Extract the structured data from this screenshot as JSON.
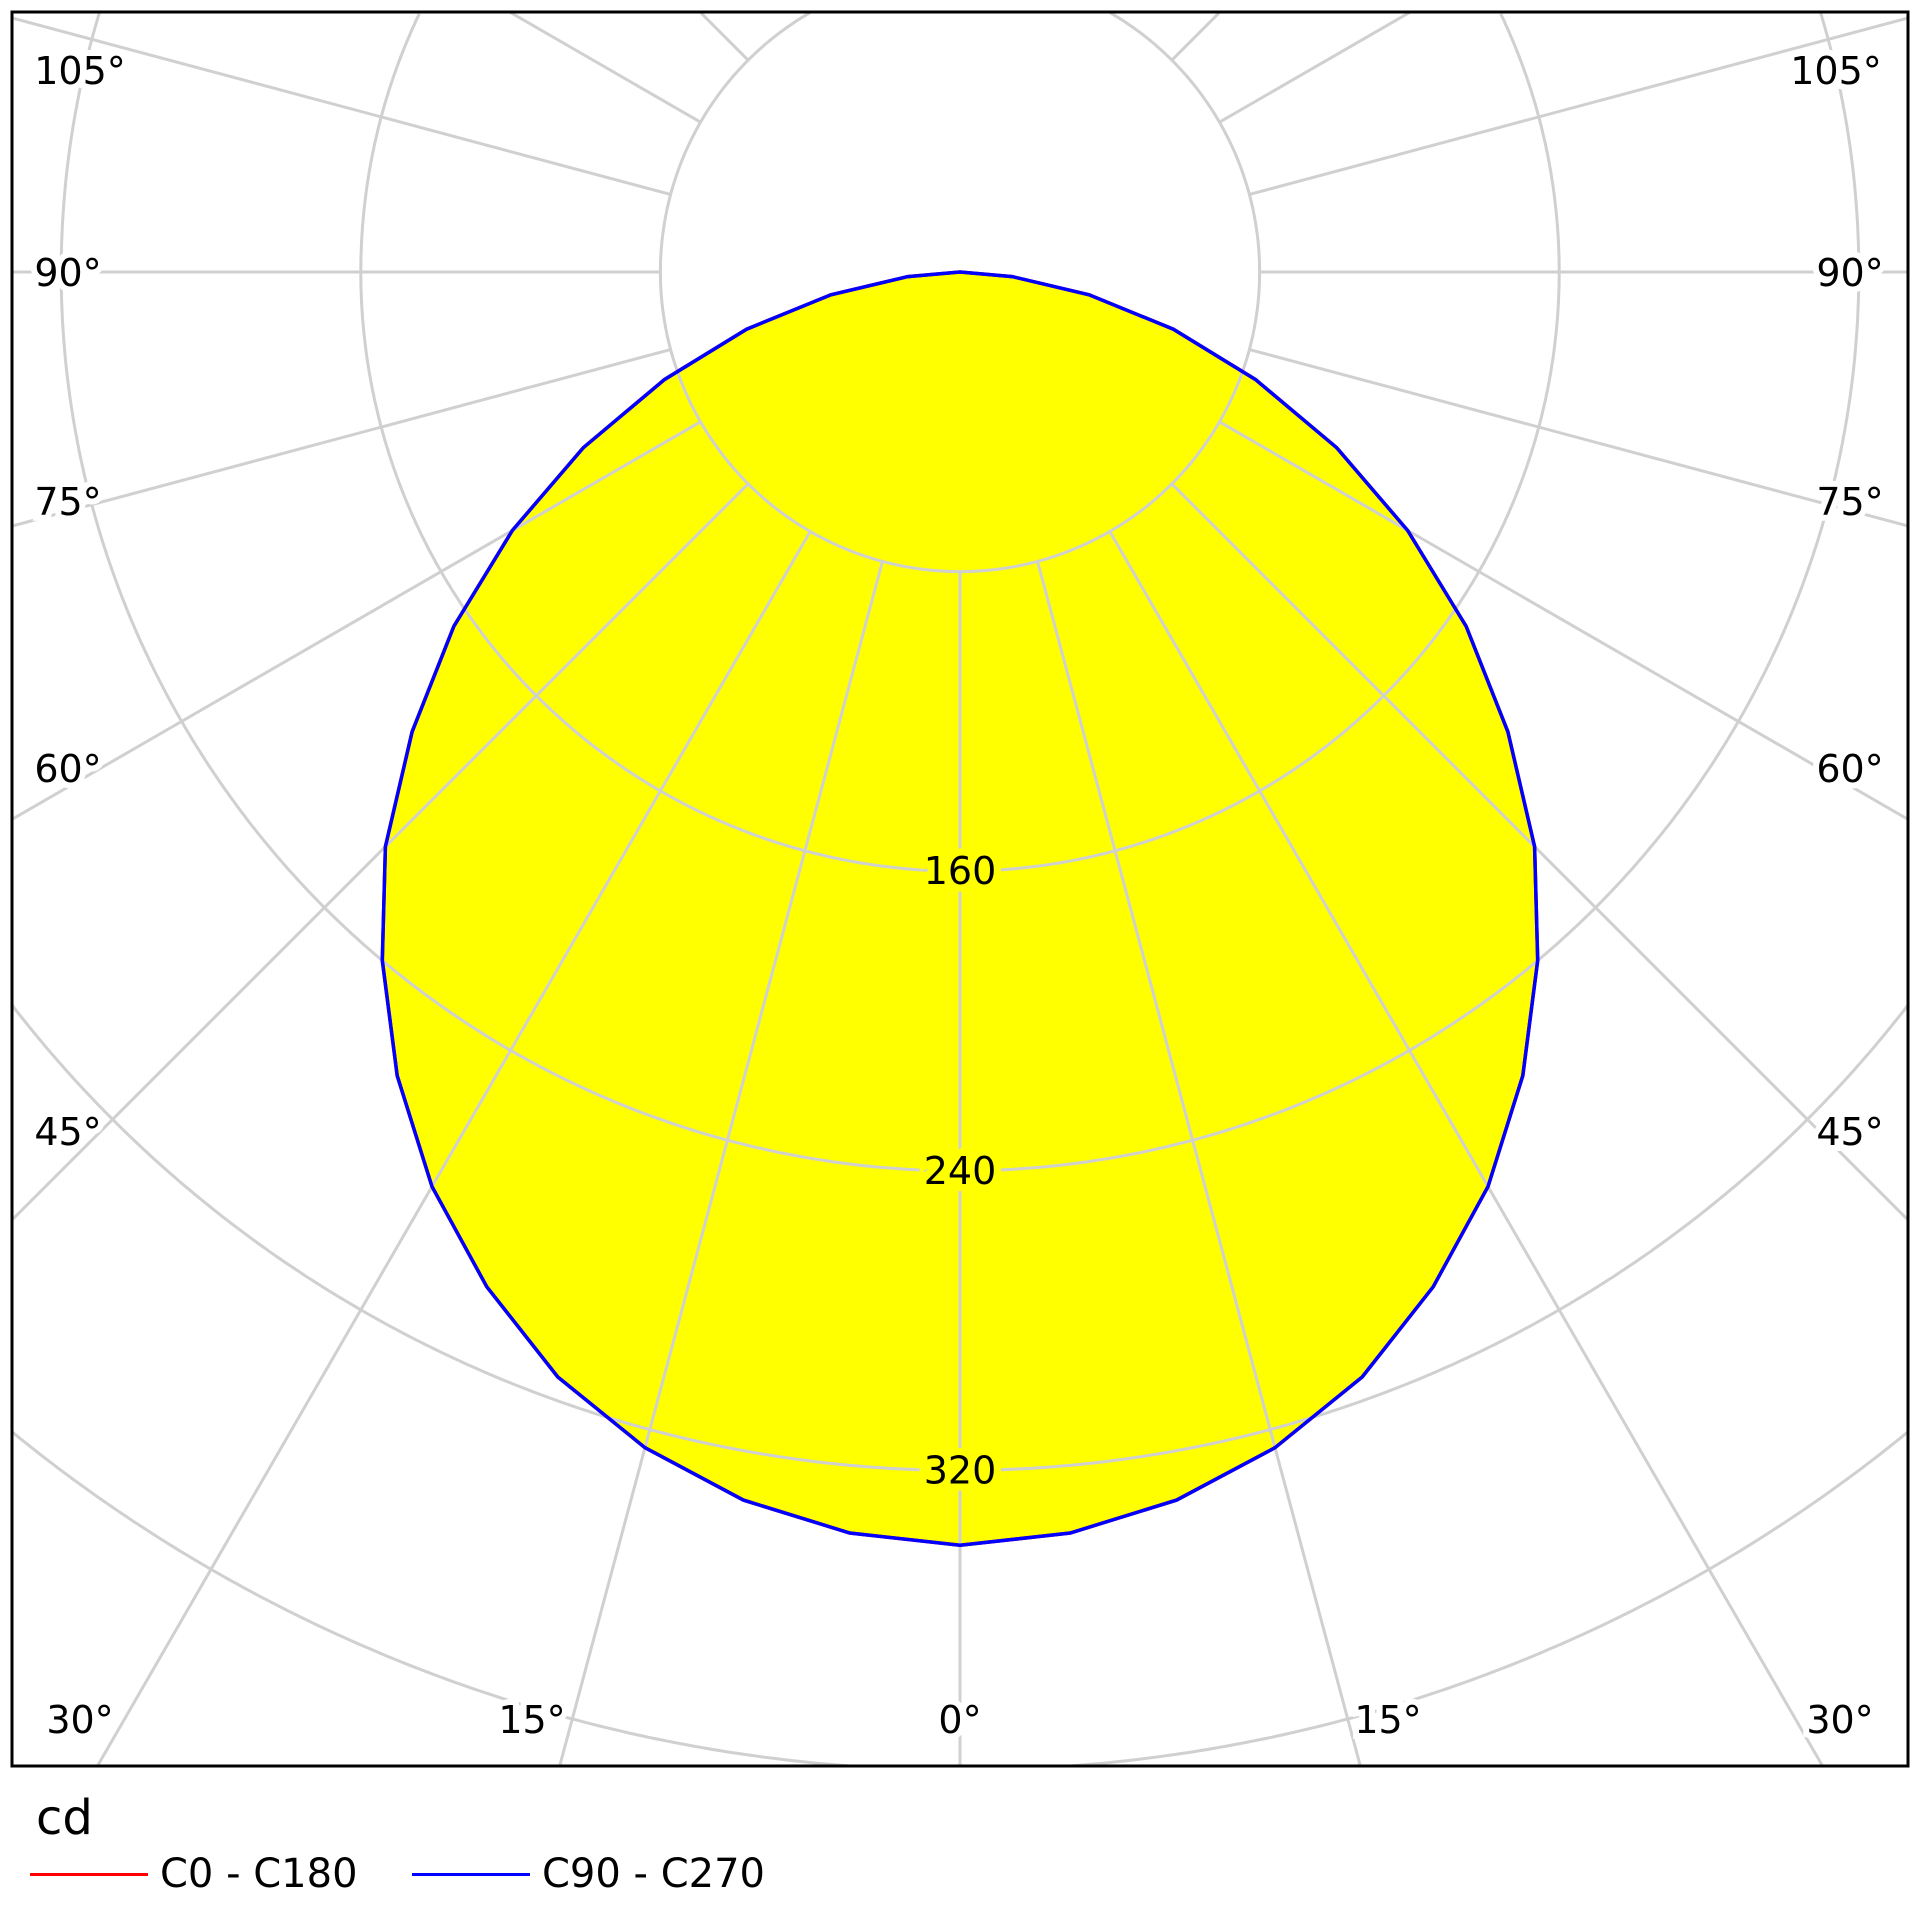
{
  "chart_data": {
    "type": "polar-line",
    "unit": "cd",
    "radial_ticks": [
      160,
      240,
      320
    ],
    "radial_grid": [
      80,
      160,
      240,
      320,
      400,
      480,
      560,
      640
    ],
    "angle_tick_labels": [
      "0°",
      "15°",
      "30°",
      "45°",
      "60°",
      "75°",
      "90°",
      "105°"
    ],
    "angles_deg": [
      0,
      5,
      10,
      15,
      20,
      25,
      30,
      35,
      40,
      45,
      50,
      55,
      60,
      65,
      70,
      75,
      80,
      85,
      90
    ],
    "series": [
      {
        "name": "C0 - C180",
        "color": "#ff0000",
        "values": [
          340,
          338,
          333,
          325,
          314,
          299,
          282,
          262,
          240,
          217,
          191,
          165,
          138,
          111,
          84,
          59,
          35,
          14,
          0
        ]
      },
      {
        "name": "C90 - C270",
        "color": "#0000ff",
        "values": [
          340,
          338,
          333,
          325,
          314,
          299,
          282,
          262,
          240,
          217,
          191,
          165,
          138,
          111,
          84,
          59,
          35,
          14,
          0
        ]
      }
    ],
    "fill_color": "#ffff00",
    "grid": true,
    "legend_position": "bottom-left"
  }
}
